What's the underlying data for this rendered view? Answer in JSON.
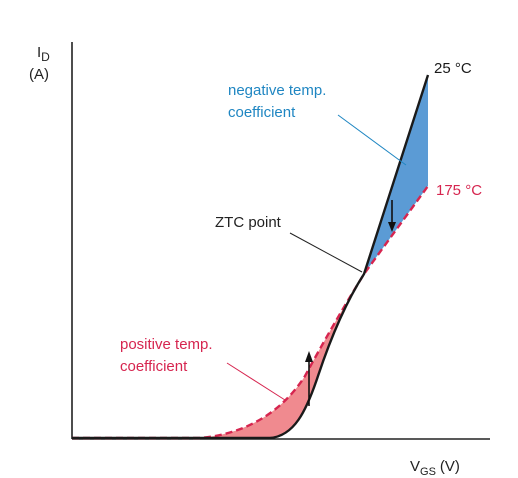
{
  "chart_data": {
    "type": "line",
    "title": "",
    "ylabel": {
      "main": "I",
      "sub": "D",
      "unit": "(A)"
    },
    "xlabel": {
      "main": "V",
      "sub": "GS",
      "unit": "(V)"
    },
    "grid": false,
    "series": [
      {
        "name": "25 °C",
        "color": "#1a1a1a",
        "style": "solid"
      },
      {
        "name": "175 °C",
        "color": "#d6254f",
        "style": "dashed"
      }
    ],
    "annotations": {
      "ztc": "ZTC point",
      "negative_line1": "negative temp.",
      "negative_line2": "coefficient",
      "positive_line1": "positive temp.",
      "positive_line2": "coefficient"
    },
    "regions": {
      "negative": {
        "color": "#5b9bd5"
      },
      "positive": {
        "color": "#f08a8f"
      }
    },
    "colors": {
      "negative_label": "#1f86c2",
      "positive_label": "#d6254f",
      "axis": "#222222"
    }
  }
}
